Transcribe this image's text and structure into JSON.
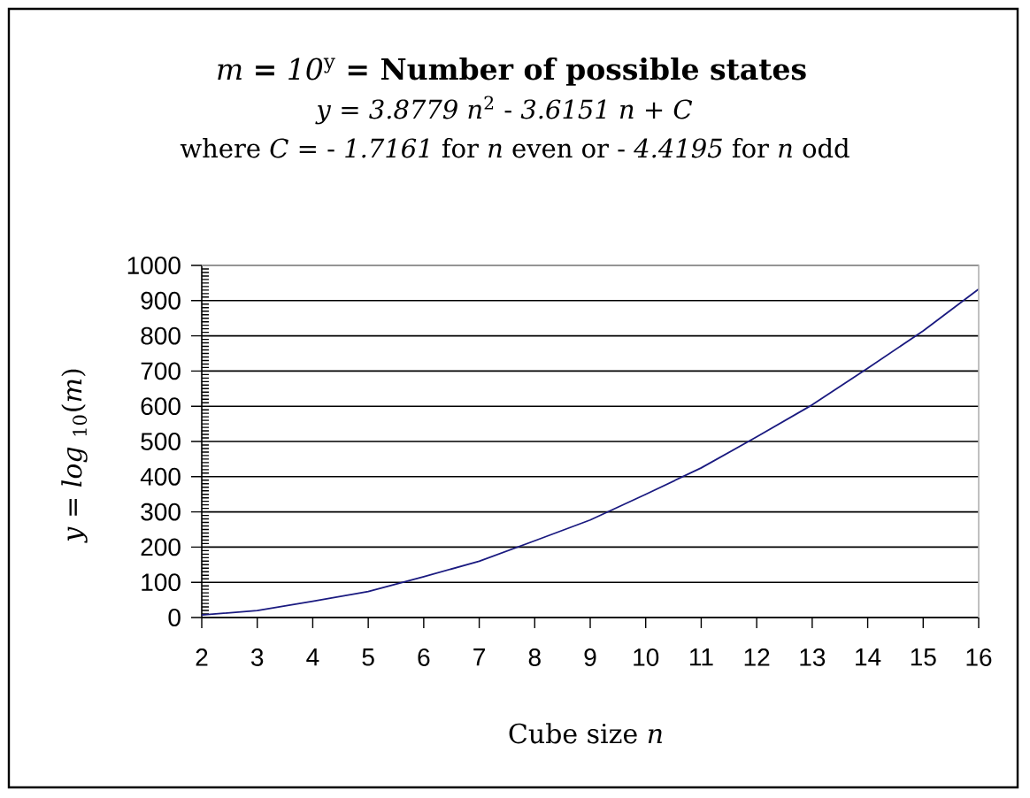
{
  "chart_data": {
    "type": "line",
    "title": "*m* **=** *10*$^{y}$ **= Number of possible states**",
    "subtitle": "*y* = *3.8779 n*$^{2}$ - *3.6151 n* + *C*",
    "annotations": [
      "where *C* = - *1.7161* for *n* even or - *4.4195* for *n* odd"
    ],
    "xlabel": "Cube size *n*",
    "ylabel": "*y* = *log* $_{10}$(*m*)",
    "x": [
      2,
      3,
      4,
      5,
      6,
      7,
      8,
      9,
      10,
      11,
      12,
      13,
      14,
      15,
      16
    ],
    "values": [
      7,
      20,
      46,
      74,
      116,
      160,
      218,
      277,
      350,
      425,
      513,
      604,
      708,
      814,
      933
    ],
    "color": "#1a1a80",
    "xlim": [
      2,
      16
    ],
    "xticks": [
      2,
      3,
      4,
      5,
      6,
      7,
      8,
      9,
      10,
      11,
      12,
      13,
      14,
      15,
      16
    ],
    "ylim": [
      0,
      1000
    ],
    "yticks": [
      0,
      100,
      200,
      300,
      400,
      500,
      600,
      700,
      800,
      900,
      1000
    ],
    "grid": "y",
    "marker": "none",
    "line_style": "solid"
  }
}
